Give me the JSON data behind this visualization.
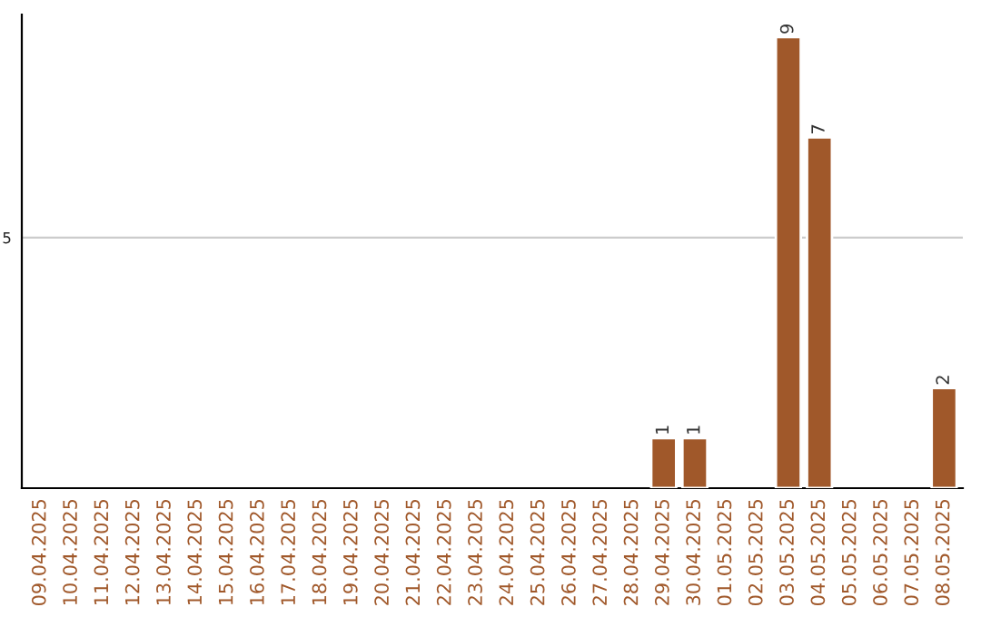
{
  "chart_data": {
    "type": "bar",
    "categories": [
      "09.04.2025",
      "10.04.2025",
      "11.04.2025",
      "12.04.2025",
      "13.04.2025",
      "14.04.2025",
      "15.04.2025",
      "16.04.2025",
      "17.04.2025",
      "18.04.2025",
      "19.04.2025",
      "20.04.2025",
      "21.04.2025",
      "22.04.2025",
      "23.04.2025",
      "24.04.2025",
      "25.04.2025",
      "26.04.2025",
      "27.04.2025",
      "28.04.2025",
      "29.04.2025",
      "30.04.2025",
      "01.05.2025",
      "02.05.2025",
      "03.05.2025",
      "04.05.2025",
      "05.05.2025",
      "06.05.2025",
      "07.05.2025",
      "08.05.2025"
    ],
    "values": [
      null,
      null,
      null,
      null,
      null,
      null,
      null,
      null,
      null,
      null,
      null,
      null,
      null,
      null,
      null,
      null,
      null,
      null,
      null,
      null,
      1,
      1,
      null,
      null,
      9,
      7,
      null,
      null,
      null,
      2
    ],
    "color": "#a0582a",
    "ylim": [
      0,
      9.45
    ],
    "yticks": [
      5
    ],
    "grid": "y",
    "data_labels": true,
    "legend": false
  }
}
